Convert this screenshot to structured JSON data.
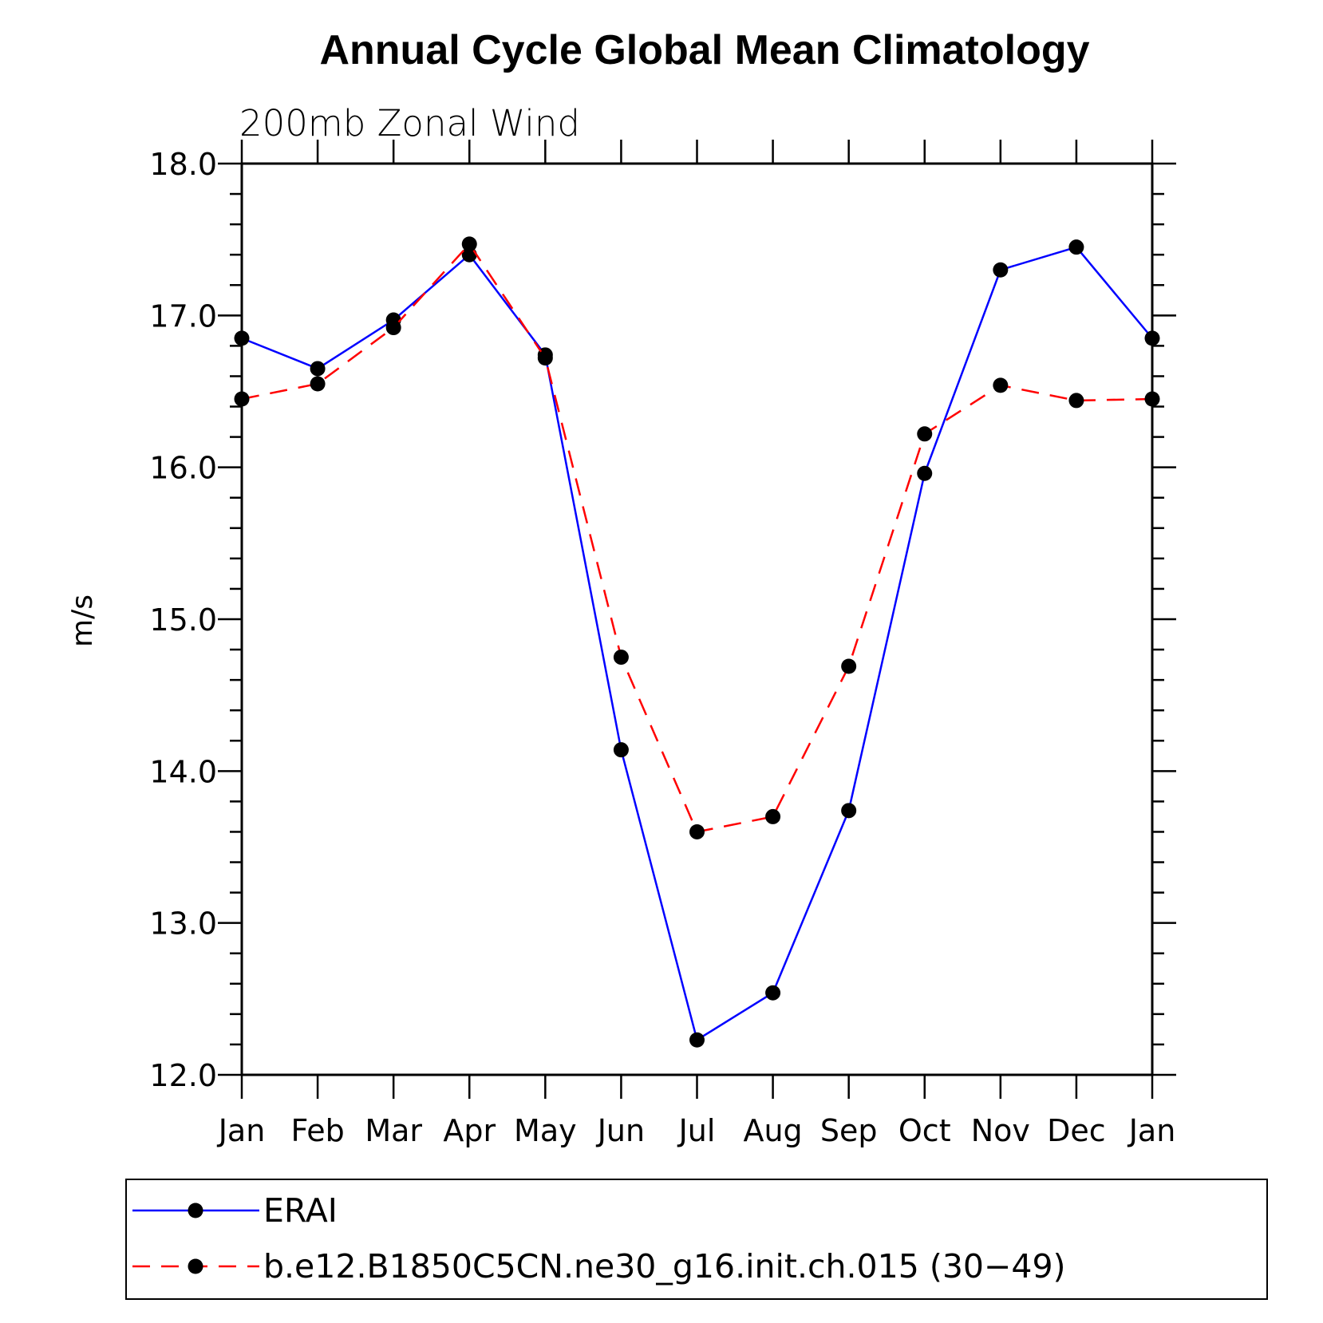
{
  "chart_data": {
    "type": "line",
    "title": "Annual Cycle Global Mean Climatology",
    "subtitle": "200mb  Zonal  Wind",
    "xlabel": "",
    "ylabel": "m/s",
    "categories": [
      "Jan",
      "Feb",
      "Mar",
      "Apr",
      "May",
      "Jun",
      "Jul",
      "Aug",
      "Sep",
      "Oct",
      "Nov",
      "Dec",
      "Jan"
    ],
    "ylim": [
      12.0,
      18.0
    ],
    "yticks": [
      "12.0",
      "13.0",
      "14.0",
      "15.0",
      "16.0",
      "17.0",
      "18.0"
    ],
    "series": [
      {
        "name": "ERAI",
        "color": "#0000ff",
        "dash": "solid",
        "values": [
          16.85,
          16.65,
          16.97,
          17.4,
          16.74,
          14.14,
          12.23,
          12.54,
          13.74,
          15.96,
          17.3,
          17.45,
          16.85
        ]
      },
      {
        "name": "b.e12.B1850C5CN.ne30_g16.init.ch.015 (30−49)",
        "color": "#ff0000",
        "dash": "dashed",
        "values": [
          16.45,
          16.55,
          16.92,
          17.47,
          16.72,
          14.75,
          13.6,
          13.7,
          14.69,
          16.22,
          16.54,
          16.44,
          16.45
        ]
      }
    ],
    "legend_position": "bottom"
  }
}
